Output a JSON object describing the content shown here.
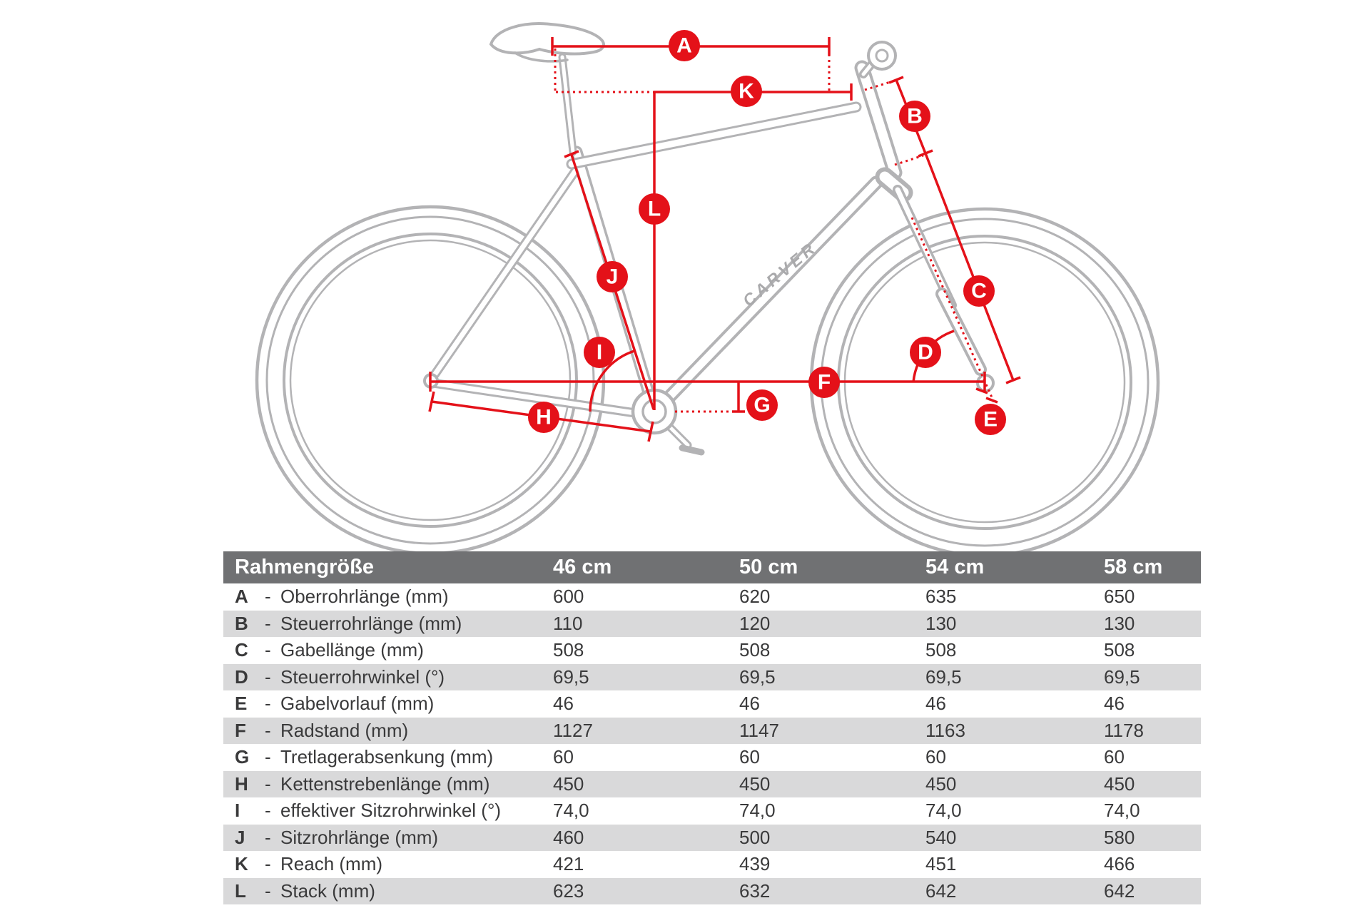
{
  "diagram": {
    "brand_logo": "CARVER",
    "labels": [
      "A",
      "B",
      "C",
      "D",
      "E",
      "F",
      "G",
      "H",
      "I",
      "J",
      "K",
      "L"
    ]
  },
  "table": {
    "size_header": "Rahmengröße",
    "columns": [
      "46 cm",
      "50 cm",
      "54 cm",
      "58 cm"
    ],
    "rows": [
      {
        "letter": "A",
        "name": "Oberrohrlänge (mm)",
        "values": [
          "600",
          "620",
          "635",
          "650"
        ]
      },
      {
        "letter": "B",
        "name": "Steuerrohrlänge (mm)",
        "values": [
          "110",
          "120",
          "130",
          "130"
        ]
      },
      {
        "letter": "C",
        "name": "Gabellänge (mm)",
        "values": [
          "508",
          "508",
          "508",
          "508"
        ]
      },
      {
        "letter": "D",
        "name": "Steuerrohrwinkel (°)",
        "values": [
          "69,5",
          "69,5",
          "69,5",
          "69,5"
        ]
      },
      {
        "letter": "E",
        "name": "Gabelvorlauf (mm)",
        "values": [
          "46",
          "46",
          "46",
          "46"
        ]
      },
      {
        "letter": "F",
        "name": "Radstand (mm)",
        "values": [
          "1127",
          "1147",
          "1163",
          "1178"
        ]
      },
      {
        "letter": "G",
        "name": "Tretlagerabsenkung (mm)",
        "values": [
          "60",
          "60",
          "60",
          "60"
        ]
      },
      {
        "letter": "H",
        "name": "Kettenstrebenlänge (mm)",
        "values": [
          "450",
          "450",
          "450",
          "450"
        ]
      },
      {
        "letter": "I",
        "name": "effektiver Sitzrohrwinkel (°)",
        "values": [
          "74,0",
          "74,0",
          "74,0",
          "74,0"
        ]
      },
      {
        "letter": "J",
        "name": "Sitzrohrlänge (mm)",
        "values": [
          "460",
          "500",
          "540",
          "580"
        ]
      },
      {
        "letter": "K",
        "name": "Reach (mm)",
        "values": [
          "421",
          "439",
          "451",
          "466"
        ]
      },
      {
        "letter": "L",
        "name": "Stack (mm)",
        "values": [
          "623",
          "632",
          "642",
          "642"
        ]
      }
    ]
  },
  "colors": {
    "accent_red": "#e41119",
    "frame_gray": "#b3b3b5",
    "header_bg": "#707173",
    "row_stripe": "#d9d9da",
    "text": "#3a3a3b"
  }
}
